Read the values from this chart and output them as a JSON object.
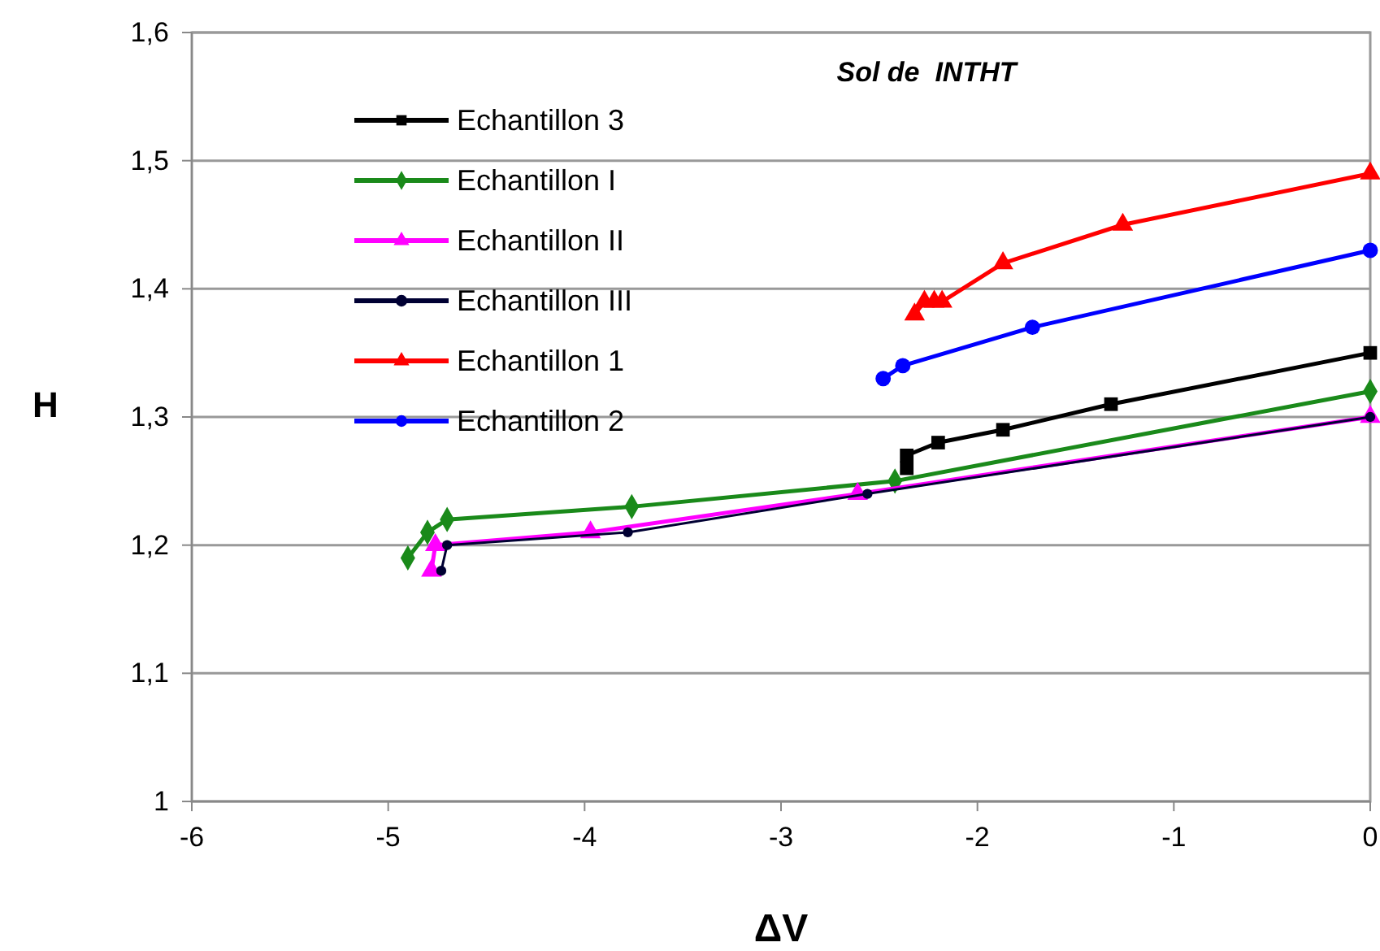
{
  "chart_data": {
    "type": "line",
    "title": "Sol de  INTHT",
    "xlabel": "ΔV",
    "ylabel": "H",
    "xlim": [
      -6,
      0
    ],
    "xticks": [
      -6,
      -5,
      -4,
      -3,
      -2,
      -1,
      0
    ],
    "ylim": [
      1,
      1.6
    ],
    "yticks": [
      1,
      {
        "value": 1.1,
        "label": "1,1"
      },
      {
        "value": 1.2,
        "label": "1,2"
      },
      {
        "value": 1.3,
        "label": "1,3"
      },
      {
        "value": 1.4,
        "label": "1,4"
      },
      {
        "value": 1.5,
        "label": "1,5"
      },
      {
        "value": 1.6,
        "label": "1,6"
      }
    ],
    "grid": "y",
    "legend": "top left",
    "series": [
      {
        "name": "Echantillon 3",
        "color": "#000000",
        "marker": "square",
        "x": [
          -2.36,
          -2.36,
          -2.2,
          -1.87,
          -1.32,
          0
        ],
        "values": [
          1.26,
          1.27,
          1.28,
          1.29,
          1.31,
          1.35
        ]
      },
      {
        "name": "Echantillon I",
        "color": "#1a8a1a",
        "marker": "diamond",
        "x": [
          -4.9,
          -4.8,
          -4.7,
          -3.76,
          -2.42,
          0
        ],
        "values": [
          1.19,
          1.21,
          1.22,
          1.23,
          1.25,
          1.32
        ]
      },
      {
        "name": "Echantillon II",
        "color": "#ff00ff",
        "marker": "triangle",
        "x": [
          -4.78,
          -4.76,
          -3.97,
          -2.61,
          0
        ],
        "values": [
          1.18,
          1.2,
          1.21,
          1.24,
          1.3
        ]
      },
      {
        "name": "Echantillon III",
        "color": "#000033",
        "marker": "circle",
        "x": [
          -4.73,
          -4.7,
          -3.78,
          -2.56,
          0
        ],
        "values": [
          1.18,
          1.2,
          1.21,
          1.24,
          1.3
        ]
      },
      {
        "name": "Echantillon 1",
        "color": "#ff0000",
        "marker": "triangle",
        "x": [
          -2.32,
          -2.27,
          -2.22,
          -2.18,
          -1.87,
          -1.26,
          0
        ],
        "values": [
          1.38,
          1.39,
          1.39,
          1.39,
          1.42,
          1.45,
          1.49
        ]
      },
      {
        "name": "Echantillon 2",
        "color": "#0000ff",
        "marker": "circle",
        "x": [
          -2.48,
          -2.38,
          -1.72,
          0
        ],
        "values": [
          1.33,
          1.34,
          1.37,
          1.43
        ]
      }
    ]
  }
}
